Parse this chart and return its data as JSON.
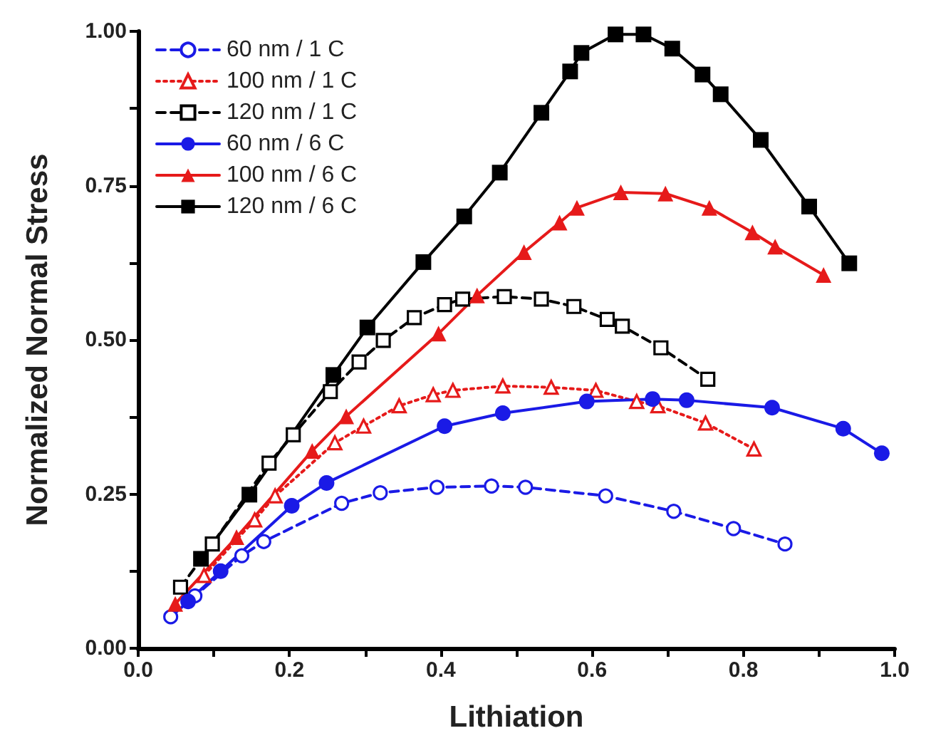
{
  "chart_data": {
    "type": "line",
    "xlabel": "Lithiation",
    "ylabel": "Normalized Normal Stress",
    "xlim": [
      0,
      1
    ],
    "ylim": [
      0,
      1
    ],
    "xticks": [
      {
        "value": 0,
        "label": "0.0"
      },
      {
        "value": 0.1,
        "label": null
      },
      {
        "value": 0.2,
        "label": "0.2"
      },
      {
        "value": 0.3,
        "label": null
      },
      {
        "value": 0.4,
        "label": "0.4"
      },
      {
        "value": 0.5,
        "label": null
      },
      {
        "value": 0.6,
        "label": "0.6"
      },
      {
        "value": 0.7,
        "label": null
      },
      {
        "value": 0.8,
        "label": "0.8"
      },
      {
        "value": 0.9,
        "label": null
      },
      {
        "value": 1,
        "label": "1.0"
      }
    ],
    "yticks": [
      {
        "value": 0,
        "label": "0.00"
      },
      {
        "value": 0.125,
        "label": null
      },
      {
        "value": 0.25,
        "label": "0.25"
      },
      {
        "value": 0.375,
        "label": null
      },
      {
        "value": 0.5,
        "label": "0.50"
      },
      {
        "value": 0.625,
        "label": null
      },
      {
        "value": 0.75,
        "label": "0.75"
      },
      {
        "value": 0.875,
        "label": null
      },
      {
        "value": 1,
        "label": "1.00"
      }
    ],
    "grid": false,
    "legend": "top left",
    "series": [
      {
        "name": "60 nm / 1 C",
        "color": "#1a1ae6",
        "marker": "circle",
        "line_style": "dashed",
        "x": [
          0.043,
          0.075,
          0.137,
          0.166,
          0.269,
          0.32,
          0.395,
          0.467,
          0.512,
          0.618,
          0.708,
          0.787,
          0.855
        ],
        "values": [
          0.051,
          0.085,
          0.15,
          0.173,
          0.235,
          0.252,
          0.261,
          0.263,
          0.261,
          0.247,
          0.222,
          0.194,
          0.169
        ]
      },
      {
        "name": "100 nm / 1 C",
        "color": "#e61a1a",
        "marker": "triangle",
        "line_style": "dotted",
        "x": [
          0.087,
          0.154,
          0.181,
          0.26,
          0.298,
          0.345,
          0.39,
          0.416,
          0.482,
          0.546,
          0.605,
          0.659,
          0.687,
          0.75,
          0.814
        ],
        "values": [
          0.118,
          0.208,
          0.247,
          0.333,
          0.36,
          0.393,
          0.411,
          0.418,
          0.425,
          0.423,
          0.418,
          0.4,
          0.393,
          0.365,
          0.323
        ]
      },
      {
        "name": "120 nm / 1 C",
        "color": "#000000",
        "marker": "square",
        "line_style": "dashed",
        "x": [
          0.056,
          0.098,
          0.173,
          0.205,
          0.254,
          0.292,
          0.324,
          0.365,
          0.405,
          0.429,
          0.484,
          0.533,
          0.576,
          0.62,
          0.64,
          0.691,
          0.753
        ],
        "values": [
          0.099,
          0.169,
          0.3,
          0.346,
          0.416,
          0.464,
          0.499,
          0.536,
          0.557,
          0.566,
          0.57,
          0.566,
          0.554,
          0.533,
          0.522,
          0.487,
          0.436
        ]
      },
      {
        "name": "60 nm / 6 C",
        "color": "#1a1ae6",
        "marker": "circle",
        "line_style": "solid",
        "x": [
          0.066,
          0.109,
          0.203,
          0.249,
          0.405,
          0.482,
          0.593,
          0.68,
          0.725,
          0.838,
          0.932,
          0.983
        ],
        "values": [
          0.076,
          0.125,
          0.231,
          0.268,
          0.36,
          0.381,
          0.4,
          0.404,
          0.402,
          0.39,
          0.356,
          0.316
        ]
      },
      {
        "name": "100 nm / 6 C",
        "color": "#e61a1a",
        "marker": "triangle",
        "line_style": "solid",
        "x": [
          0.049,
          0.13,
          0.23,
          0.275,
          0.397,
          0.448,
          0.51,
          0.557,
          0.58,
          0.638,
          0.697,
          0.755,
          0.812,
          0.842,
          0.906
        ],
        "values": [
          0.072,
          0.18,
          0.32,
          0.376,
          0.51,
          0.572,
          0.642,
          0.69,
          0.714,
          0.739,
          0.737,
          0.714,
          0.674,
          0.651,
          0.605
        ]
      },
      {
        "name": "120 nm / 6 C",
        "color": "#000000",
        "marker": "square",
        "line_style": "solid",
        "x": [
          0.083,
          0.147,
          0.258,
          0.303,
          0.377,
          0.431,
          0.478,
          0.533,
          0.571,
          0.586,
          0.631,
          0.668,
          0.706,
          0.746,
          0.77,
          0.823,
          0.887,
          0.94
        ],
        "values": [
          0.145,
          0.249,
          0.443,
          0.52,
          0.626,
          0.7,
          0.771,
          0.868,
          0.935,
          0.965,
          0.995,
          0.995,
          0.972,
          0.93,
          0.898,
          0.824,
          0.716,
          0.624
        ]
      }
    ]
  }
}
